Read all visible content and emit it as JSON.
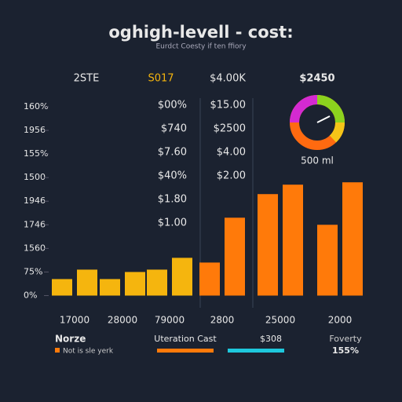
{
  "header": {
    "title": "oghigh-levell - cost:",
    "subtitle": "Eurdct Coesty if ten ffiory"
  },
  "top_row": [
    "2STE",
    "S017",
    "$4.00K",
    "$2450"
  ],
  "table": {
    "rows": [
      [
        "$00%",
        "$15.00"
      ],
      [
        "$740",
        "$2500"
      ],
      [
        "$7.60",
        "$4.00"
      ],
      [
        "$40%",
        "$2.00"
      ],
      [
        "$1.80"
      ],
      [
        "$1.00"
      ]
    ]
  },
  "gauge": {
    "label": "500 ml"
  },
  "chart_data": {
    "type": "bar",
    "categories": [
      "17000",
      "28000",
      "79000",
      "2800",
      "25000",
      "2000"
    ],
    "series": [
      {
        "values": [
          0.7,
          0.7,
          1.1,
          1.4,
          4.3,
          3.0
        ]
      },
      {
        "values": [
          1.1,
          1.0,
          1.6,
          3.3,
          4.7,
          4.8
        ]
      }
    ],
    "bar_colors": [
      "#f5b50e",
      "#f5b50e",
      "#f5b50e",
      "#ff7a0a",
      "#ff7a0a",
      "#ff7a0a"
    ],
    "ylim": [
      -0.45,
      8
    ],
    "yticks": [
      {
        "value": 0,
        "label": "0%"
      },
      {
        "value": 1,
        "label": "75%"
      },
      {
        "value": 2,
        "label": "1560"
      },
      {
        "value": 3,
        "label": "1746"
      },
      {
        "value": 4,
        "label": "1946"
      },
      {
        "value": 5,
        "label": "1500"
      },
      {
        "value": 6,
        "label": "155%"
      },
      {
        "value": 7,
        "label": "1956"
      },
      {
        "value": 8,
        "label": "160%"
      }
    ]
  },
  "footer": {
    "left_title": "Norze",
    "left_note": "Not is sle yerk",
    "mid_title": "Uteration Cast",
    "mid_value": "$308",
    "right_title": "Foverty",
    "right_value": "155%"
  }
}
